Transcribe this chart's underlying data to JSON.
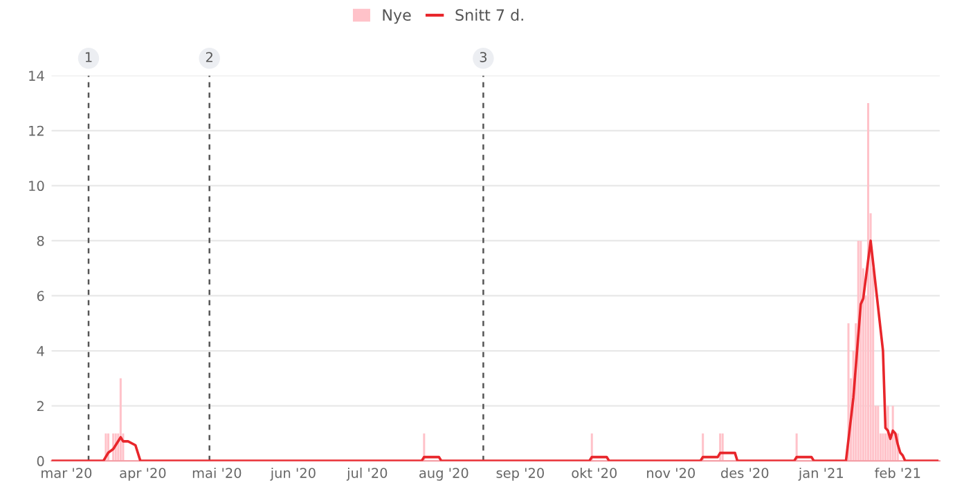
{
  "chart_data": {
    "type": "bar",
    "series": [
      {
        "name": "Nye",
        "color": "#ffc2c9",
        "x": [
          "2020-03-17",
          "2020-03-18",
          "2020-03-20",
          "2020-03-21",
          "2020-03-22",
          "2020-03-23",
          "2020-03-24",
          "2020-07-24",
          "2020-09-30",
          "2020-11-14",
          "2020-11-21",
          "2020-11-22",
          "2020-12-22",
          "2021-01-12",
          "2021-01-13",
          "2021-01-14",
          "2021-01-15",
          "2021-01-16",
          "2021-01-17",
          "2021-01-18",
          "2021-01-19",
          "2021-01-20",
          "2021-01-21",
          "2021-01-22",
          "2021-01-23",
          "2021-01-24",
          "2021-01-25",
          "2021-01-26",
          "2021-01-27",
          "2021-01-28",
          "2021-01-29",
          "2021-01-30",
          "2021-01-31",
          "2021-02-01"
        ],
        "values": [
          1,
          1,
          1,
          1,
          1,
          3,
          1,
          1,
          1,
          1,
          1,
          1,
          1,
          5,
          3,
          4,
          5,
          8,
          8,
          7,
          6,
          13,
          9,
          7,
          2,
          2,
          1,
          1,
          1,
          2,
          1,
          2,
          1,
          1
        ]
      },
      {
        "name": "Snitt 7 d.",
        "type": "line",
        "color": "#e8262b",
        "x": [
          "2020-02-24",
          "2020-03-16",
          "2020-03-18",
          "2020-03-20",
          "2020-03-23",
          "2020-03-24",
          "2020-03-26",
          "2020-03-29",
          "2020-03-31",
          "2020-07-23",
          "2020-07-24",
          "2020-07-30",
          "2020-07-31",
          "2020-09-29",
          "2020-09-30",
          "2020-10-06",
          "2020-10-07",
          "2020-11-13",
          "2020-11-14",
          "2020-11-20",
          "2020-11-21",
          "2020-11-27",
          "2020-11-28",
          "2020-12-21",
          "2020-12-22",
          "2020-12-28",
          "2020-12-29",
          "2021-01-11",
          "2021-01-14",
          "2021-01-17",
          "2021-01-18",
          "2021-01-21",
          "2021-01-26",
          "2021-01-27",
          "2021-01-28",
          "2021-01-29",
          "2021-01-30",
          "2021-01-31",
          "2021-02-01",
          "2021-02-02",
          "2021-02-03",
          "2021-02-04",
          "2021-02-17"
        ],
        "values": [
          0,
          0,
          0.3,
          0.43,
          0.86,
          0.71,
          0.71,
          0.57,
          0,
          0,
          0.14,
          0.14,
          0,
          0,
          0.14,
          0.14,
          0,
          0,
          0.14,
          0.14,
          0.29,
          0.29,
          0,
          0,
          0.14,
          0.14,
          0,
          0,
          2.3,
          5.7,
          5.9,
          8,
          4,
          1.2,
          1.1,
          0.8,
          1.1,
          1,
          0.6,
          0.3,
          0.2,
          0,
          0
        ]
      }
    ],
    "xlim": [
      "2020-02-24",
      "2021-02-18"
    ],
    "xticks": [
      {
        "value": "2020-03-01",
        "label": "mar '20"
      },
      {
        "value": "2020-04-01",
        "label": "apr '20"
      },
      {
        "value": "2020-05-01",
        "label": "mai '20"
      },
      {
        "value": "2020-06-01",
        "label": "jun '20"
      },
      {
        "value": "2020-07-01",
        "label": "jul '20"
      },
      {
        "value": "2020-08-01",
        "label": "aug '20"
      },
      {
        "value": "2020-09-01",
        "label": "sep '20"
      },
      {
        "value": "2020-10-01",
        "label": "okt '20"
      },
      {
        "value": "2020-11-01",
        "label": "nov '20"
      },
      {
        "value": "2020-12-01",
        "label": "des '20"
      },
      {
        "value": "2021-01-01",
        "label": "jan '21"
      },
      {
        "value": "2021-02-01",
        "label": "feb '21"
      }
    ],
    "ylim": [
      0,
      14
    ],
    "yticks": [
      0,
      2,
      4,
      6,
      8,
      10,
      12,
      14
    ],
    "grid": "y",
    "legend": "top",
    "ref_lines": [
      {
        "axis": "x",
        "value": "2020-03-10",
        "label": "1",
        "color": "#555555",
        "line_style": "dashed"
      },
      {
        "axis": "x",
        "value": "2020-04-28",
        "label": "2",
        "color": "#555555",
        "line_style": "dashed"
      },
      {
        "axis": "x",
        "value": "2020-08-17",
        "label": "3",
        "color": "#555555",
        "line_style": "dashed"
      }
    ]
  }
}
